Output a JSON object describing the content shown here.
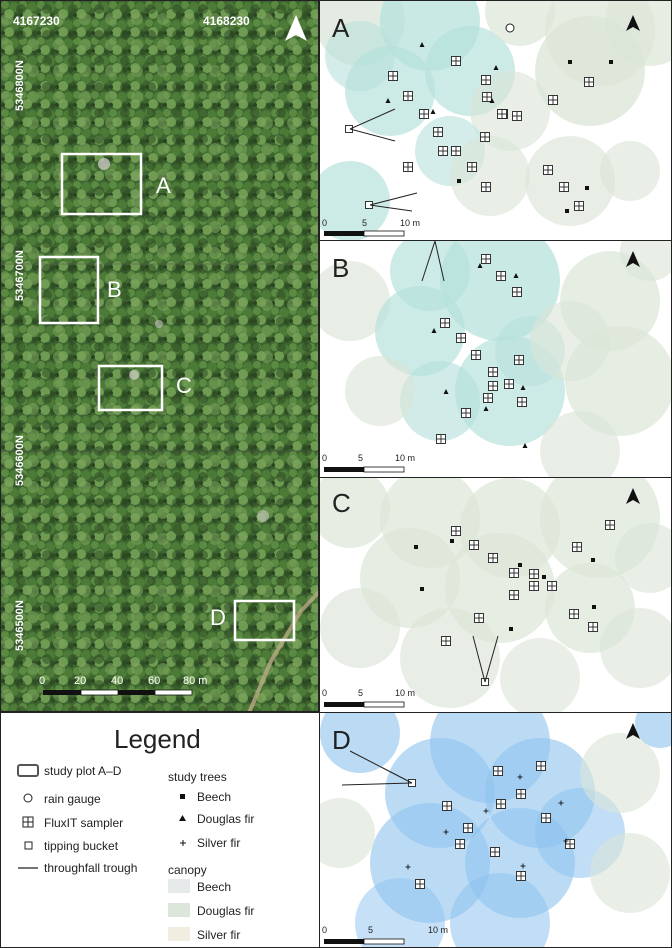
{
  "aerial": {
    "coord_top_left": "4167230",
    "coord_top_right": "4168230",
    "coord_left": [
      "5346800N",
      "5346700N",
      "5346600N",
      "5346500N"
    ],
    "plots": [
      "A",
      "B",
      "C",
      "D"
    ],
    "scale_labels": [
      "0",
      "20",
      "40",
      "60",
      "80 m"
    ]
  },
  "panels": [
    {
      "label": "A",
      "scale_labels": [
        "0",
        "5",
        "10 m"
      ]
    },
    {
      "label": "B",
      "scale_labels": [
        "0",
        "5",
        "10 m"
      ]
    },
    {
      "label": "C",
      "scale_labels": [
        "0",
        "5",
        "10 m"
      ]
    },
    {
      "label": "D",
      "scale_labels": [
        "0",
        "5",
        "10 m"
      ]
    }
  ],
  "legend": {
    "title": "Legend",
    "items": [
      {
        "label": "study plot A–D",
        "symbol": "plot-rect"
      },
      {
        "label": "rain gauge",
        "symbol": "circle"
      },
      {
        "label": "FluxIT sampler",
        "symbol": "boxed-plus"
      },
      {
        "label": "tipping bucket",
        "symbol": "square"
      },
      {
        "label": "throughfall trough",
        "symbol": "line"
      }
    ],
    "study_trees_title": "study trees",
    "study_trees": [
      "Beech",
      "Douglas fir",
      "Silver fir"
    ],
    "canopy_title": "canopy",
    "canopy": [
      {
        "label": "Beech",
        "color": "#e6eaea"
      },
      {
        "label": "Douglas fir",
        "color": "#dde6da"
      },
      {
        "label": "Silver fir",
        "color": "#f2ede1"
      }
    ]
  },
  "colors": {
    "douglas_canopy": "#b7e1dc",
    "beech_canopy": "#d6dfd0",
    "silver_canopy": "#8ec3ef",
    "forest_dark": "#2d4a22",
    "forest_mid": "#4f7a3a"
  }
}
